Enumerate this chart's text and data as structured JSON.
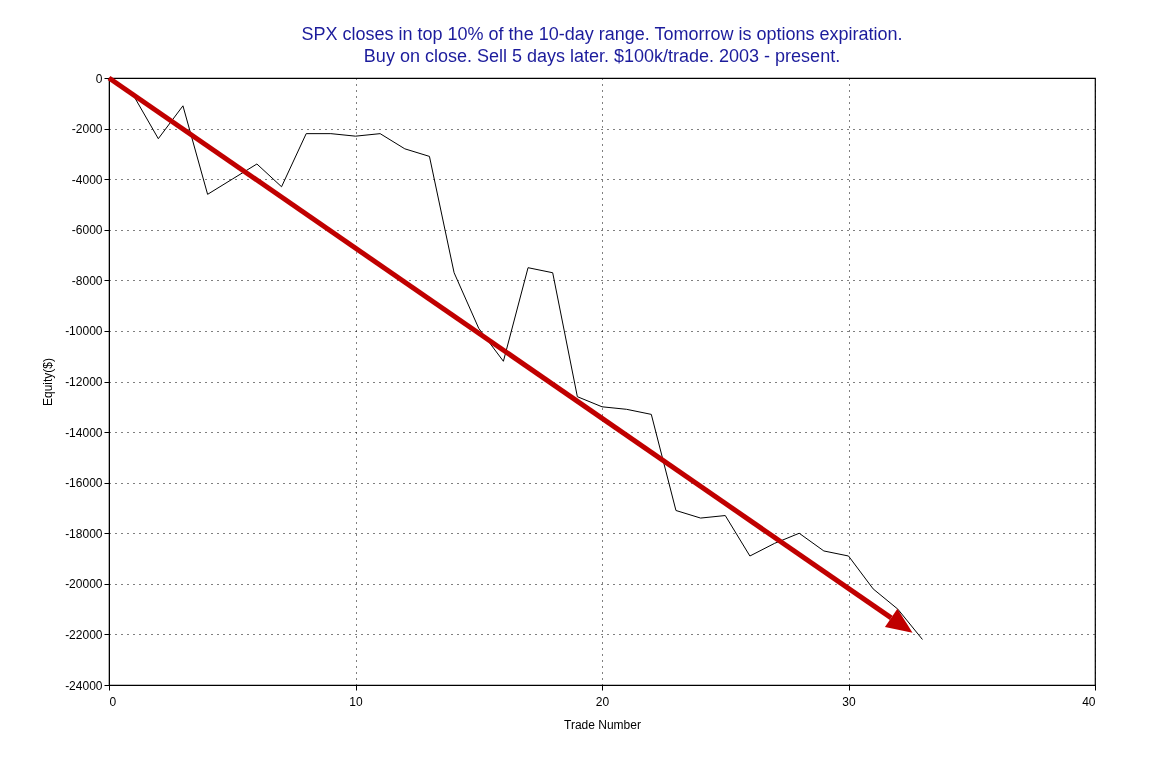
{
  "chart_data": {
    "type": "line",
    "title": "SPX closes in top 10% of the 10-day range. Tomorrow is options expiration.",
    "subtitle": "Buy on close. Sell 5 days later. $100k/trade. 2003 - present.",
    "xlabel": "Trade Number",
    "ylabel": "Equity($)",
    "x": [
      0,
      1,
      2,
      3,
      4,
      5,
      6,
      7,
      8,
      9,
      10,
      11,
      12,
      13,
      14,
      15,
      16,
      17,
      18,
      19,
      20,
      21,
      22,
      23,
      24,
      25,
      26,
      27,
      28,
      29,
      30,
      31,
      32,
      33
    ],
    "series": [
      {
        "color": "#000000",
        "values": [
          0,
          -700,
          -2400,
          -1100,
          -4600,
          -4000,
          -3400,
          -4300,
          -2200,
          -2200,
          -2300,
          -2200,
          -2800,
          -3100,
          -7700,
          -9900,
          -11200,
          -7500,
          -7700,
          -12600,
          -13000,
          -13100,
          -13300,
          -17100,
          -17400,
          -17300,
          -18900,
          -18400,
          -18000,
          -18700,
          -18900,
          -20200,
          -21000,
          -22200
        ]
      }
    ],
    "xlim": [
      0,
      40
    ],
    "xticks": [
      0,
      10,
      20,
      30,
      40
    ],
    "ylim": [
      -24000,
      0
    ],
    "yticks": [
      -24000,
      -22000,
      -20000,
      -18000,
      -16000,
      -14000,
      -12000,
      -10000,
      -8000,
      -6000,
      -4000,
      -2000,
      0
    ],
    "grid": true,
    "marker": "none",
    "line_style": "solid"
  }
}
